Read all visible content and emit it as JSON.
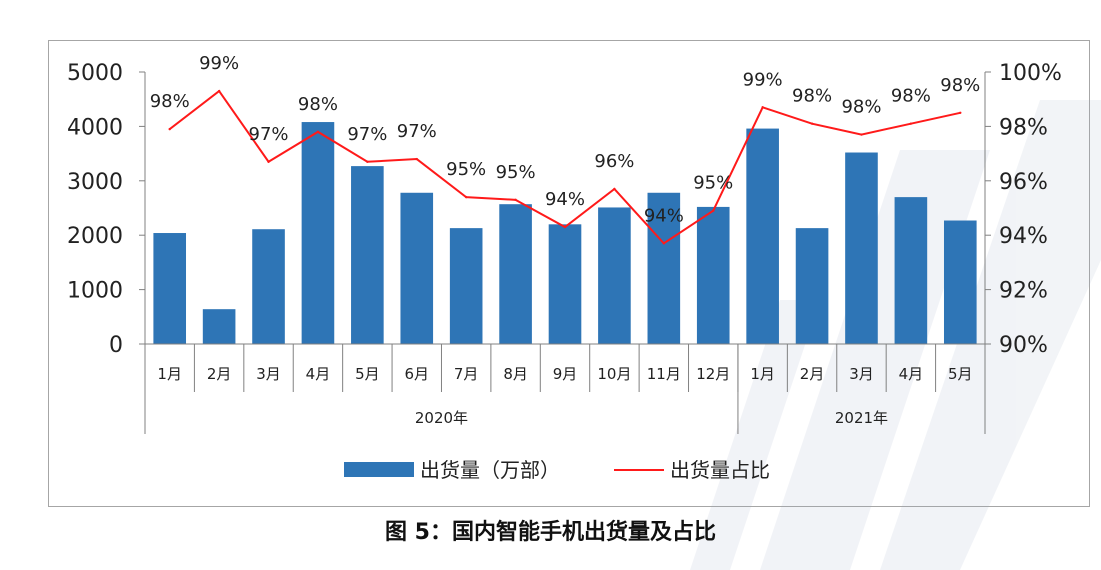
{
  "colors": {
    "bar": "#2e75b6",
    "line": "#ff1a1a",
    "axis": "#808080",
    "text": "#222222"
  },
  "chart_data": {
    "type": "bar+line",
    "categories": [
      "1月",
      "2月",
      "3月",
      "4月",
      "5月",
      "6月",
      "7月",
      "8月",
      "9月",
      "10月",
      "11月",
      "12月",
      "1月",
      "2月",
      "3月",
      "4月",
      "5月"
    ],
    "groups": [
      {
        "label": "2020年",
        "count": 12
      },
      {
        "label": "2021年",
        "count": 5
      }
    ],
    "series": [
      {
        "name": "出货量（万部）",
        "type": "bar",
        "axis": "left",
        "values": [
          2040,
          640,
          2110,
          4080,
          3270,
          2780,
          2130,
          2570,
          2200,
          2510,
          2780,
          2520,
          3960,
          2130,
          3520,
          2700,
          2270
        ]
      },
      {
        "name": "出货量占比",
        "type": "line",
        "axis": "right",
        "values": [
          97.9,
          99.3,
          96.7,
          97.8,
          96.7,
          96.8,
          95.4,
          95.3,
          94.3,
          95.7,
          93.7,
          94.9,
          98.7,
          98.1,
          97.7,
          98.1,
          98.5
        ],
        "labels": [
          "98%",
          "99%",
          "97%",
          "98%",
          "97%",
          "97%",
          "95%",
          "95%",
          "94%",
          "96%",
          "94%",
          "95%",
          "99%",
          "98%",
          "98%",
          "98%",
          "98%"
        ]
      }
    ],
    "yleft": {
      "min": 0,
      "max": 5000,
      "ticks": [
        "0",
        "1000",
        "2000",
        "3000",
        "4000",
        "5000"
      ]
    },
    "yright": {
      "min": 90,
      "max": 100,
      "ticks": [
        "90%",
        "92%",
        "94%",
        "96%",
        "98%",
        "100%"
      ]
    },
    "legend": {
      "placement": "bottom",
      "items": [
        "出货量（万部）",
        "出货量占比"
      ]
    },
    "caption": "图 5：国内智能手机出货量及占比"
  }
}
